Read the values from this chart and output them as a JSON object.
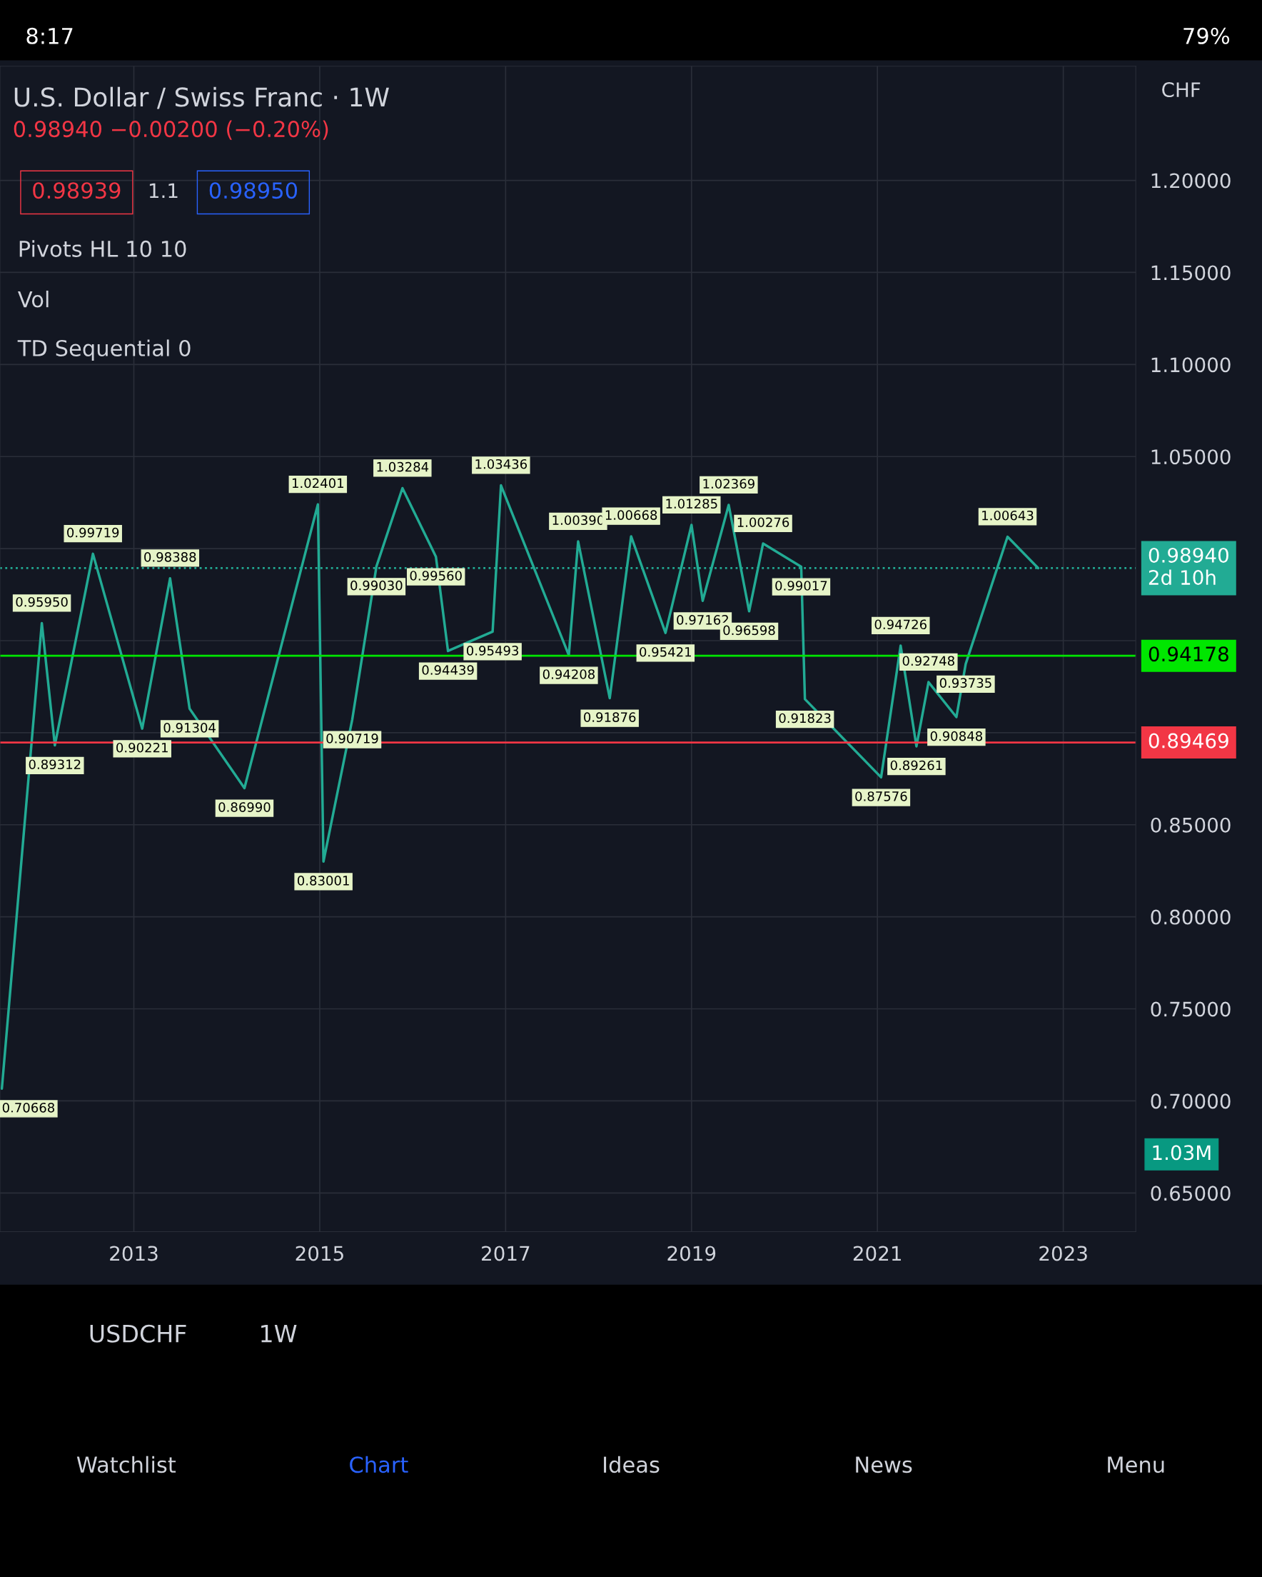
{
  "chart_data": {
    "type": "line",
    "title": "U.S. Dollar / Swiss Franc · 1W",
    "subtitle": "0.98940 −0.00200 (−0.20%)",
    "x": [
      2011.58,
      2012.01,
      2012.15,
      2012.56,
      2013.09,
      2013.39,
      2013.6,
      2014.19,
      2014.98,
      2015.04,
      2015.35,
      2015.61,
      2015.89,
      2016.25,
      2016.38,
      2016.86,
      2016.95,
      2017.68,
      2017.78,
      2018.12,
      2018.35,
      2018.72,
      2019.0,
      2019.12,
      2019.4,
      2019.62,
      2019.77,
      2020.18,
      2020.22,
      2021.04,
      2021.25,
      2021.42,
      2021.55,
      2021.85,
      2021.95,
      2022.4,
      2022.73
    ],
    "series": [
      {
        "color": "#22ab94",
        "values": [
          0.70668,
          0.9595,
          0.89312,
          0.99719,
          0.90221,
          0.98388,
          0.91304,
          0.8699,
          1.02401,
          0.83001,
          0.90719,
          0.9903,
          1.03284,
          0.9956,
          0.94439,
          0.95493,
          1.03436,
          0.94208,
          1.0039,
          0.91876,
          1.00668,
          0.95421,
          1.01285,
          0.97162,
          1.02369,
          0.96598,
          1.00276,
          0.99017,
          0.91823,
          0.87576,
          0.94726,
          0.89261,
          0.92748,
          0.90848,
          0.93735,
          1.00643,
          0.9894
        ],
        "value_labels": [
          "0.70668",
          "0.95950",
          "0.89312",
          "0.99719",
          "0.90221",
          "0.98388",
          "0.91304",
          "0.86990",
          "1.02401",
          "0.83001",
          "0.90719",
          "0.99030",
          "1.03284",
          "0.99560",
          "0.94439",
          "0.95493",
          "1.03436",
          "0.94208",
          "1.00390",
          "0.91876",
          "1.00668",
          "0.95421",
          "1.01285",
          "0.97162",
          "1.02369",
          "0.96598",
          "1.00276",
          "0.99017",
          "0.91823",
          "0.87576",
          "0.94726",
          "0.89261",
          "0.92748",
          "0.90848",
          "0.93735",
          "1.00643",
          null
        ]
      }
    ],
    "xlim": [
      2011.56,
      2023.78
    ],
    "xticks": [
      2013,
      2015,
      2017,
      2019,
      2021,
      2023
    ],
    "ylim": [
      0.629,
      1.262
    ],
    "yticks": [
      {
        "value": 0.65,
        "label": "0.65000"
      },
      {
        "value": 0.7,
        "label": "0.70000"
      },
      {
        "value": 0.75,
        "label": "0.75000"
      },
      {
        "value": 0.8,
        "label": "0.80000"
      },
      {
        "value": 0.85,
        "label": "0.85000"
      },
      {
        "value": 0.9,
        "label": null
      },
      {
        "value": 0.95,
        "label": null
      },
      {
        "value": 1.0,
        "label": null
      },
      {
        "value": 1.05,
        "label": "1.05000"
      },
      {
        "value": 1.1,
        "label": "1.10000"
      },
      {
        "value": 1.15,
        "label": "1.15000"
      },
      {
        "value": 1.2,
        "label": "1.20000"
      }
    ],
    "ref_lines": [
      {
        "axis": "y",
        "value": 0.9894,
        "label": "0.98940\n2d 10h",
        "color": "#22ab94",
        "line_style": "dotted"
      },
      {
        "axis": "y",
        "value": 0.94178,
        "label": "0.94178",
        "color": "#00e600",
        "line_style": "solid"
      },
      {
        "axis": "y",
        "value": 0.89469,
        "label": "0.89469",
        "color": "#f23645",
        "line_style": "solid"
      }
    ],
    "grid": true,
    "marker": "none",
    "line_style": "solid",
    "annotations": [
      "8:17",
      "79%",
      "0.98939",
      "1.1",
      "0.98950",
      "Pivots HL 10 10",
      "Vol",
      "TD Sequential 0",
      "CHF",
      "1.03M",
      "USDCHF",
      "1W",
      "Watchlist",
      "Chart",
      "Ideas",
      "News",
      "Menu"
    ]
  }
}
